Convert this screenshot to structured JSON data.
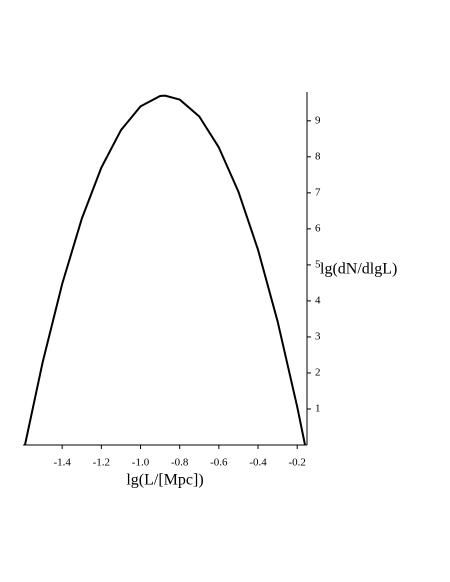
{
  "chart_data": {
    "type": "line",
    "x_label": "lg(L/[Mpc])",
    "y_label": "lg(dN/dlgL)",
    "x": [
      -1.59,
      -1.5,
      -1.4,
      -1.3,
      -1.2,
      -1.1,
      -1.0,
      -0.9,
      -0.875,
      -0.8,
      -0.7,
      -0.6,
      -0.5,
      -0.4,
      -0.3,
      -0.2,
      -0.16
    ],
    "series": [
      {
        "color": "#000000",
        "values": [
          0,
          2.29,
          4.47,
          6.28,
          7.7,
          8.74,
          9.4,
          9.69,
          9.7,
          9.59,
          9.12,
          8.26,
          7.03,
          5.42,
          3.43,
          1.06,
          0
        ]
      }
    ],
    "xlim": [
      -1.6,
      -0.15
    ],
    "ylim": [
      0,
      9.8
    ],
    "xticks": [
      -1.4,
      -1.2,
      {
        "value": -1.0,
        "label": "-1.0"
      },
      -0.8,
      -0.6,
      -0.4,
      -0.2
    ],
    "yticks": [
      1,
      2,
      3,
      4,
      5,
      6,
      7,
      8,
      9
    ]
  }
}
